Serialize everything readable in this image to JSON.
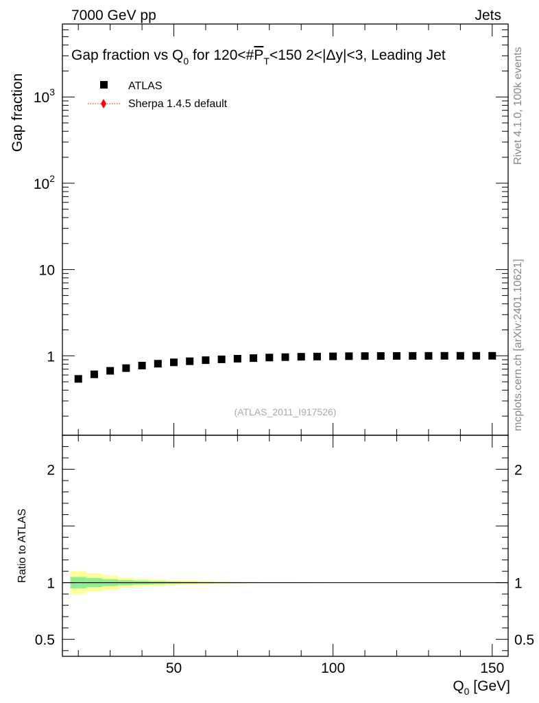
{
  "header": {
    "left": "7000 GeV pp",
    "right": "Jets"
  },
  "side_labels": {
    "rivet": "Rivet 4.1.0,  100k events",
    "mcplots": "mcplots.cern.ch [arXiv:2401.10621]"
  },
  "analysis_id": "(ATLAS_2011_I917526)",
  "chart_data": [
    {
      "type": "scatter",
      "title": "Gap fraction vs Q0 for 120<#PT<150  2<|Δy|<3, Leading Jet",
      "title_parts": {
        "a": "Gap fraction vs Q",
        "sub0": "0",
        "b": " for 120<#",
        "p": "P",
        "sub_t": "T",
        "c": "<150  2<|Δy|<3, Leading Jet"
      },
      "ylabel": "Gap fraction",
      "yscale": "log",
      "ylim": [
        0.12,
        7000
      ],
      "xlim": [
        15,
        155
      ],
      "y_ticks": [
        {
          "value": 1,
          "label": "1"
        },
        {
          "value": 10,
          "label": "10"
        },
        {
          "value": 100,
          "base": "10",
          "exp": "2"
        },
        {
          "value": 1000,
          "base": "10",
          "exp": "3"
        }
      ],
      "legend": {
        "placement": "top-left",
        "entries": [
          {
            "label": "ATLAS",
            "marker": "square",
            "color": "#000000"
          },
          {
            "label": "Sherpa 1.4.5 default",
            "marker": "diamond-dotted-line",
            "color": "#ff0000"
          }
        ]
      },
      "series": [
        {
          "name": "ATLAS",
          "x": [
            20,
            25,
            30,
            35,
            40,
            45,
            50,
            55,
            60,
            65,
            70,
            75,
            80,
            85,
            90,
            95,
            100,
            105,
            110,
            115,
            120,
            125,
            130,
            135,
            140,
            145,
            150
          ],
          "y": [
            0.54,
            0.61,
            0.67,
            0.72,
            0.77,
            0.81,
            0.84,
            0.865,
            0.89,
            0.91,
            0.925,
            0.94,
            0.955,
            0.965,
            0.975,
            0.98,
            0.985,
            0.99,
            0.993,
            0.995,
            0.997,
            0.998,
            0.999,
            1.0,
            1.0,
            1.0,
            1.0
          ]
        }
      ]
    },
    {
      "type": "line",
      "ylabel": "Ratio to ATLAS",
      "xlabel": "Q0 [GeV]",
      "xlabel_parts": {
        "a": "Q",
        "sub": "0",
        "b": " [GeV]"
      },
      "xlim": [
        15,
        155
      ],
      "ylim": [
        0.35,
        2.3
      ],
      "y_ticks": [
        {
          "value": 0.5,
          "label": "0.5"
        },
        {
          "value": 1,
          "label": "1"
        },
        {
          "value": 2,
          "label": "2"
        }
      ],
      "x_ticks": [
        {
          "value": 50,
          "label": "50"
        },
        {
          "value": 100,
          "label": "100"
        },
        {
          "value": 150,
          "label": "150"
        }
      ],
      "reference": 1,
      "bands": {
        "bin_edges": [
          17.5,
          22.5,
          27.5,
          32.5,
          37.5,
          42.5,
          47.5,
          52.5,
          57.5,
          62.5,
          67.5,
          72.5,
          77.5,
          82.5,
          87.5,
          92.5,
          97.5,
          102.5
        ],
        "inner_halfwidth": [
          0.05,
          0.04,
          0.03,
          0.023,
          0.017,
          0.013,
          0.01,
          0.008,
          0.006,
          0.005,
          0.004,
          0.003,
          0.003,
          0.002,
          0.002,
          0.001,
          0.001
        ],
        "outer_halfwidth": [
          0.1,
          0.08,
          0.062,
          0.045,
          0.035,
          0.027,
          0.021,
          0.017,
          0.013,
          0.011,
          0.009,
          0.007,
          0.006,
          0.005,
          0.004,
          0.003,
          0.002
        ],
        "inner_color": "#90ee90",
        "outer_color": "#ffff99"
      }
    }
  ]
}
